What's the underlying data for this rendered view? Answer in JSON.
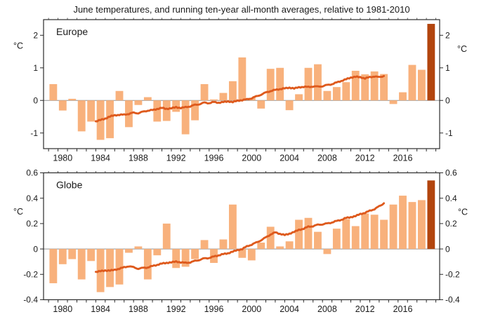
{
  "title": "June temperatures, and running ten-year all-month averages, relative to 1981-2010",
  "colors": {
    "bar": "#F8B17C",
    "highlight_bar": "#B2450E",
    "trend_line": "#DE5A1D",
    "axis": "#2b2b2b",
    "zero_line": "#8F8F8F",
    "text": "#1a1a1a"
  },
  "x_axis": {
    "start_year": 1979,
    "end_year": 2019,
    "label_years": [
      1980,
      1984,
      1988,
      1992,
      1996,
      2000,
      2004,
      2008,
      2012,
      2016
    ]
  },
  "chart_data": [
    {
      "type": "bar+line",
      "region": "Europe",
      "unit_label": "°C",
      "ylim": [
        -1.48,
        2.48
      ],
      "yticks": [
        {
          "v": -1,
          "label": "-1"
        },
        {
          "v": 0,
          "label": "0"
        },
        {
          "v": 1,
          "label": "1"
        },
        {
          "v": 2,
          "label": "2"
        }
      ],
      "highlight_year": 2019,
      "years": [
        1979,
        1980,
        1981,
        1982,
        1983,
        1984,
        1985,
        1986,
        1987,
        1988,
        1989,
        1990,
        1991,
        1992,
        1993,
        1994,
        1995,
        1996,
        1997,
        1998,
        1999,
        2000,
        2001,
        2002,
        2003,
        2004,
        2005,
        2006,
        2007,
        2008,
        2009,
        2010,
        2011,
        2012,
        2013,
        2014,
        2015,
        2016,
        2017,
        2018,
        2019
      ],
      "values": [
        0.5,
        -0.31,
        0.05,
        -0.95,
        -0.65,
        -1.21,
        -1.16,
        0.29,
        -0.82,
        -0.14,
        0.1,
        -0.65,
        -0.63,
        -0.35,
        -1.04,
        -0.61,
        0.5,
        0.03,
        0.23,
        0.59,
        1.32,
        0.08,
        -0.25,
        0.97,
        1.0,
        -0.3,
        0.19,
        1.0,
        1.11,
        0.29,
        0.41,
        0.56,
        0.91,
        0.8,
        0.89,
        0.81,
        -0.11,
        0.25,
        1.09,
        0.94,
        2.35
      ],
      "trend": [
        [
          1984,
          -0.64
        ],
        [
          1984.5,
          -0.6
        ],
        [
          1985,
          -0.56
        ],
        [
          1985.5,
          -0.49
        ],
        [
          1986,
          -0.46
        ],
        [
          1986.5,
          -0.44
        ],
        [
          1987,
          -0.44
        ],
        [
          1987.5,
          -0.41
        ],
        [
          1988,
          -0.38
        ],
        [
          1988.5,
          -0.39
        ],
        [
          1989,
          -0.35
        ],
        [
          1989.5,
          -0.31
        ],
        [
          1990,
          -0.3
        ],
        [
          1990.5,
          -0.26
        ],
        [
          1991,
          -0.23
        ],
        [
          1991.5,
          -0.26
        ],
        [
          1992,
          -0.24
        ],
        [
          1992.5,
          -0.21
        ],
        [
          1993,
          -0.23
        ],
        [
          1993.5,
          -0.21
        ],
        [
          1994,
          -0.18
        ],
        [
          1994.5,
          -0.14
        ],
        [
          1995,
          -0.11
        ],
        [
          1995.5,
          -0.07
        ],
        [
          1996,
          -0.08
        ],
        [
          1996.5,
          -0.05
        ],
        [
          1997,
          -0.07
        ],
        [
          1997.5,
          -0.05
        ],
        [
          1998,
          -0.03
        ],
        [
          1998.5,
          -0.05
        ],
        [
          1999,
          -0.01
        ],
        [
          1999.5,
          0.01
        ],
        [
          2000,
          0.03
        ],
        [
          2000.5,
          0.07
        ],
        [
          2001,
          0.12
        ],
        [
          2001.5,
          0.18
        ],
        [
          2002,
          0.24
        ],
        [
          2002.5,
          0.29
        ],
        [
          2003,
          0.32
        ],
        [
          2003.5,
          0.35
        ],
        [
          2004,
          0.37
        ],
        [
          2004.5,
          0.39
        ],
        [
          2005,
          0.37
        ],
        [
          2005.5,
          0.4
        ],
        [
          2006,
          0.42
        ],
        [
          2006.5,
          0.41
        ],
        [
          2007,
          0.43
        ],
        [
          2007.5,
          0.42
        ],
        [
          2008,
          0.44
        ],
        [
          2008.5,
          0.47
        ],
        [
          2009,
          0.5
        ],
        [
          2009.5,
          0.55
        ],
        [
          2010,
          0.6
        ],
        [
          2010.5,
          0.65
        ],
        [
          2011,
          0.7
        ],
        [
          2011.5,
          0.73
        ],
        [
          2012,
          0.71
        ],
        [
          2012.5,
          0.68
        ],
        [
          2013,
          0.71
        ],
        [
          2013.5,
          0.74
        ],
        [
          2014,
          0.71
        ],
        [
          2014.5,
          0.75
        ]
      ]
    },
    {
      "type": "bar+line",
      "region": "Globe",
      "unit_label": "°C",
      "ylim": [
        -0.4,
        0.6
      ],
      "yticks": [
        {
          "v": -0.4,
          "label": "-0.4"
        },
        {
          "v": -0.2,
          "label": "-0.2"
        },
        {
          "v": 0,
          "label": "0"
        },
        {
          "v": 0.2,
          "label": "0.2"
        },
        {
          "v": 0.4,
          "label": "0.4"
        },
        {
          "v": 0.6,
          "label": "0.6"
        }
      ],
      "highlight_year": 2019,
      "years": [
        1979,
        1980,
        1981,
        1982,
        1983,
        1984,
        1985,
        1986,
        1987,
        1988,
        1989,
        1990,
        1991,
        1992,
        1993,
        1994,
        1995,
        1996,
        1997,
        1998,
        1999,
        2000,
        2001,
        2002,
        2003,
        2004,
        2005,
        2006,
        2007,
        2008,
        2009,
        2010,
        2011,
        2012,
        2013,
        2014,
        2015,
        2016,
        2017,
        2018,
        2019
      ],
      "values": [
        -0.27,
        -0.12,
        -0.08,
        -0.24,
        -0.095,
        -0.34,
        -0.3,
        -0.28,
        -0.03,
        0.02,
        -0.24,
        -0.05,
        0.2,
        -0.15,
        -0.14,
        -0.08,
        0.07,
        -0.11,
        0.075,
        0.35,
        -0.07,
        -0.09,
        0.05,
        0.175,
        0.02,
        0.06,
        0.23,
        0.245,
        0.135,
        -0.04,
        0.16,
        0.235,
        0.18,
        0.28,
        0.27,
        0.23,
        0.35,
        0.42,
        0.37,
        0.385,
        0.54
      ],
      "trend": [
        [
          1984,
          -0.18
        ],
        [
          1984.5,
          -0.175
        ],
        [
          1985,
          -0.17
        ],
        [
          1985.5,
          -0.17
        ],
        [
          1986,
          -0.165
        ],
        [
          1986.5,
          -0.155
        ],
        [
          1987,
          -0.145
        ],
        [
          1987.5,
          -0.135
        ],
        [
          1988,
          -0.145
        ],
        [
          1988.5,
          -0.155
        ],
        [
          1989,
          -0.15
        ],
        [
          1989.5,
          -0.145
        ],
        [
          1990,
          -0.135
        ],
        [
          1990.5,
          -0.125
        ],
        [
          1991,
          -0.115
        ],
        [
          1991.5,
          -0.11
        ],
        [
          1992,
          -0.105
        ],
        [
          1992.5,
          -0.1
        ],
        [
          1993,
          -0.105
        ],
        [
          1993.5,
          -0.11
        ],
        [
          1994,
          -0.105
        ],
        [
          1994.5,
          -0.095
        ],
        [
          1995,
          -0.085
        ],
        [
          1995.5,
          -0.075
        ],
        [
          1996,
          -0.07
        ],
        [
          1996.5,
          -0.06
        ],
        [
          1997,
          -0.05
        ],
        [
          1997.5,
          -0.04
        ],
        [
          1998,
          -0.035
        ],
        [
          1998.5,
          -0.02
        ],
        [
          1999,
          -0.01
        ],
        [
          1999.5,
          0.0
        ],
        [
          2000,
          0.02
        ],
        [
          2000.5,
          0.035
        ],
        [
          2001,
          0.05
        ],
        [
          2001.5,
          0.07
        ],
        [
          2002,
          0.09
        ],
        [
          2002.5,
          0.115
        ],
        [
          2003,
          0.13
        ],
        [
          2003.5,
          0.12
        ],
        [
          2004,
          0.11
        ],
        [
          2004.5,
          0.12
        ],
        [
          2005,
          0.135
        ],
        [
          2005.5,
          0.15
        ],
        [
          2006,
          0.16
        ],
        [
          2006.5,
          0.175
        ],
        [
          2007,
          0.18
        ],
        [
          2007.5,
          0.19
        ],
        [
          2008,
          0.195
        ],
        [
          2008.5,
          0.2
        ],
        [
          2009,
          0.21
        ],
        [
          2009.5,
          0.22
        ],
        [
          2010,
          0.23
        ],
        [
          2010.5,
          0.245
        ],
        [
          2011,
          0.25
        ],
        [
          2011.5,
          0.26
        ],
        [
          2012,
          0.275
        ],
        [
          2012.5,
          0.285
        ],
        [
          2013,
          0.3
        ],
        [
          2013.5,
          0.315
        ],
        [
          2014,
          0.335
        ],
        [
          2014.5,
          0.36
        ]
      ]
    }
  ]
}
